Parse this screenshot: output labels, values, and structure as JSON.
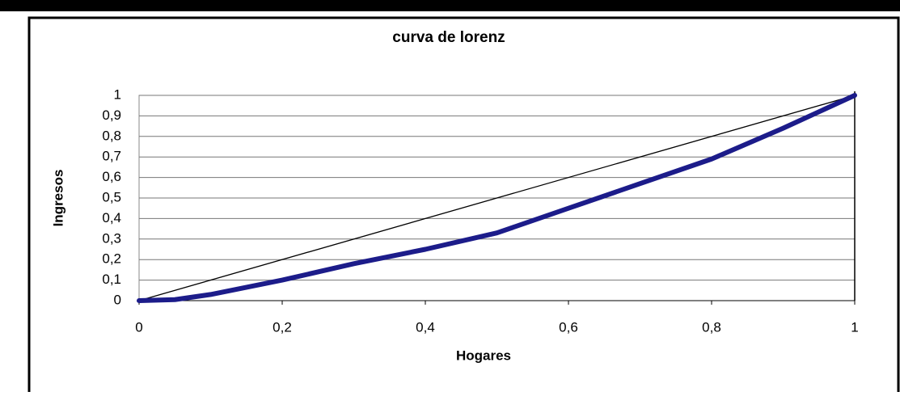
{
  "chart_data": {
    "type": "line",
    "title": "curva de lorenz",
    "x_label": "Hogares",
    "y_label": "Ingresos",
    "series": [
      {
        "color": "#000000",
        "x": [
          0,
          1
        ],
        "values": [
          0,
          1
        ]
      },
      {
        "color": "#1c1c8a",
        "x": [
          0,
          0.05,
          0.1,
          0.2,
          0.3,
          0.4,
          0.5,
          0.6,
          0.7,
          0.8,
          0.9,
          1
        ],
        "values": [
          0,
          0.005,
          0.03,
          0.1,
          0.18,
          0.25,
          0.33,
          0.45,
          0.57,
          0.69,
          0.84,
          1
        ]
      }
    ],
    "xlim": [
      0,
      1
    ],
    "ylim": [
      0,
      1
    ],
    "xticks": [
      0,
      {
        "value": 0.2,
        "label": "0,2"
      },
      {
        "value": 0.4,
        "label": "0,4"
      },
      {
        "value": 0.6,
        "label": "0,6"
      },
      {
        "value": 0.8,
        "label": "0,8"
      },
      1
    ],
    "yticks": [
      0,
      {
        "value": 0.1,
        "label": "0,1"
      },
      {
        "value": 0.2,
        "label": "0,2"
      },
      {
        "value": 0.3,
        "label": "0,3"
      },
      {
        "value": 0.4,
        "label": "0,4"
      },
      {
        "value": 0.5,
        "label": "0,5"
      },
      {
        "value": 0.6,
        "label": "0,6"
      },
      {
        "value": 0.7,
        "label": "0,7"
      },
      {
        "value": 0.8,
        "label": "0,8"
      },
      {
        "value": 0.9,
        "label": "0,9"
      },
      1
    ],
    "grid": true
  }
}
